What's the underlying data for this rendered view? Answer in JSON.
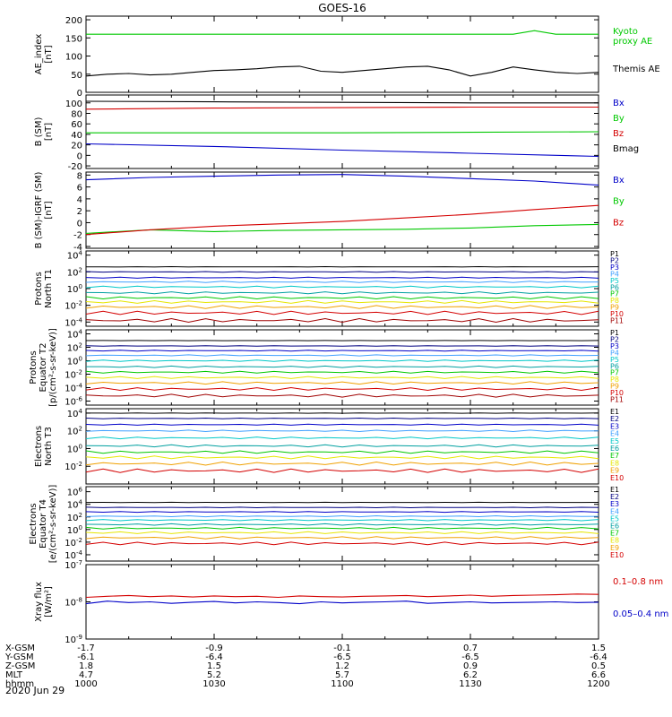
{
  "title": "GOES-16",
  "date": "2020 Jun 29",
  "colors": {
    "black": "#000000",
    "red": "#d40000",
    "green": "#00c800",
    "blue": "#0000c8",
    "cyan": "#00c8c8",
    "yellow": "#e6e600",
    "orange": "#f0a000",
    "navy": "#000080",
    "purple": "#800080",
    "lightblue": "#40a0ff",
    "teal": "#00a0a0",
    "darkred": "#a00000"
  },
  "chart_data": [
    {
      "type": "line",
      "ylabel": "AE_index\n[nT]",
      "yticks": [
        "0",
        "50",
        "100",
        "150",
        "200"
      ],
      "ylim": [
        0,
        210
      ],
      "x": [
        "1000",
        "1005",
        "1010",
        "1015",
        "1020",
        "1025",
        "1030",
        "1035",
        "1040",
        "1045",
        "1050",
        "1055",
        "1100",
        "1105",
        "1110",
        "1115",
        "1120",
        "1125",
        "1130",
        "1135",
        "1140",
        "1145",
        "1150",
        "1155",
        "1200"
      ],
      "series": [
        {
          "name": "Kyoto\nproxy AE",
          "color": "green",
          "values": [
            160,
            160,
            160,
            160,
            160,
            160,
            160,
            160,
            160,
            160,
            160,
            160,
            160,
            160,
            160,
            160,
            160,
            160,
            160,
            160,
            160,
            170,
            160,
            160,
            160
          ]
        },
        {
          "name": "Themis AE",
          "color": "black",
          "values": [
            45,
            50,
            52,
            48,
            50,
            55,
            60,
            62,
            65,
            70,
            72,
            58,
            55,
            60,
            65,
            70,
            72,
            62,
            45,
            55,
            70,
            62,
            55,
            52,
            55
          ]
        }
      ]
    },
    {
      "type": "line",
      "ylabel": "B (SM)\n[nT]",
      "yticks": [
        "-20",
        "0",
        "20",
        "40",
        "60",
        "80",
        "100"
      ],
      "ylim": [
        -25,
        115
      ],
      "x": [
        "1000",
        "1030",
        "1100",
        "1130",
        "1200"
      ],
      "series": [
        {
          "name": "Bx",
          "color": "blue",
          "values": [
            22,
            17,
            10,
            4,
            -2
          ]
        },
        {
          "name": "By",
          "color": "green",
          "values": [
            43,
            43,
            43,
            44,
            45
          ]
        },
        {
          "name": "Bz",
          "color": "red",
          "values": [
            88,
            90,
            91,
            92,
            92
          ]
        },
        {
          "name": "Bmag",
          "color": "black",
          "values": [
            103,
            102,
            101,
            100,
            100
          ]
        }
      ]
    },
    {
      "type": "line",
      "ylabel": "B (SM)-IGRF (SM)\n[nT]",
      "yticks": [
        "-4",
        "-2",
        "0",
        "2",
        "4",
        "6",
        "8"
      ],
      "ylim": [
        -4.3,
        8.5
      ],
      "x": [
        "1000",
        "1015",
        "1030",
        "1045",
        "1100",
        "1115",
        "1130",
        "1145",
        "1200"
      ],
      "series": [
        {
          "name": "Bx",
          "color": "blue",
          "values": [
            7.2,
            7.6,
            7.8,
            8.0,
            8.1,
            7.8,
            7.4,
            7.0,
            6.3
          ]
        },
        {
          "name": "By",
          "color": "green",
          "values": [
            -1.8,
            -1.2,
            -1.5,
            -1.3,
            -1.2,
            -1.1,
            -0.9,
            -0.5,
            -0.3
          ]
        },
        {
          "name": "Bz",
          "color": "red",
          "values": [
            -2.0,
            -1.2,
            -0.6,
            -0.2,
            0.2,
            0.8,
            1.4,
            2.2,
            2.9
          ]
        }
      ]
    },
    {
      "type": "line",
      "ylabel": "Protons\nNorth T1",
      "yscale": "log",
      "yticks": [
        "10^-4",
        "10^-2",
        "10^0",
        "10^2",
        "10^4"
      ],
      "ylim": [
        -4.5,
        4.5
      ],
      "channels": [
        "P1",
        "P2",
        "P3",
        "P4",
        "P5",
        "P6",
        "P7",
        "P8",
        "P9",
        "P10",
        "P11"
      ],
      "log_values": [
        2.6,
        2.0,
        1.3,
        0.8,
        0.2,
        -0.5,
        -1.1,
        -1.6,
        -2.2,
        -2.9,
        -3.8
      ]
    },
    {
      "type": "line",
      "ylabel": "Protons\nEquator T2\n[p/(cm²-s-sr-keV)]",
      "yscale": "log",
      "yticks": [
        "10^-6",
        "10^-4",
        "10^-2",
        "10^0",
        "10^2",
        "10^4"
      ],
      "ylim": [
        -6.6,
        4.6
      ],
      "channels": [
        "P1",
        "P2",
        "P3",
        "P4",
        "P5",
        "P6",
        "P7",
        "P8",
        "P9",
        "P10",
        "P11"
      ],
      "log_values": [
        3.0,
        2.2,
        1.5,
        0.8,
        0.0,
        -0.9,
        -1.7,
        -2.5,
        -3.3,
        -4.2,
        -5.2
      ]
    },
    {
      "type": "line",
      "ylabel": "Electrons\nNorth T3",
      "yscale": "log",
      "yticks": [
        "10^-2",
        "10^0",
        "10^2",
        "10^4"
      ],
      "ylim": [
        -4.0,
        4.5
      ],
      "channels": [
        "E1",
        "E2",
        "E3",
        "E4",
        "E5",
        "E6",
        "E7",
        "E8",
        "E9",
        "E10"
      ],
      "log_values": [
        4.0,
        3.4,
        2.7,
        2.0,
        1.2,
        0.3,
        -0.4,
        -1.0,
        -1.7,
        -2.5
      ]
    },
    {
      "type": "line",
      "ylabel": "Electrons\nEquator T4\n[e/(cm²-s-sr-keV)]",
      "yscale": "log",
      "yticks": [
        "10^-4",
        "10^-2",
        "10^0",
        "10^2",
        "10^4",
        "10^6"
      ],
      "ylim": [
        -5.0,
        6.8
      ],
      "channels": [
        "E1",
        "E2",
        "E3",
        "E4",
        "E5",
        "E6",
        "E7",
        "E8",
        "E9",
        "E10"
      ],
      "log_values": [
        4.3,
        3.5,
        2.8,
        2.1,
        1.5,
        0.8,
        0.2,
        -0.5,
        -1.3,
        -2.2
      ]
    },
    {
      "type": "line",
      "ylabel": "Xray flux\n[W/m²]",
      "yscale": "log",
      "yticks": [
        "10^-9",
        "10^-8",
        "10^-7"
      ],
      "ylim": [
        -9,
        -7
      ],
      "x": [
        "1000",
        "1005",
        "1010",
        "1015",
        "1020",
        "1025",
        "1030",
        "1035",
        "1040",
        "1045",
        "1050",
        "1055",
        "1100",
        "1105",
        "1110",
        "1115",
        "1120",
        "1125",
        "1130",
        "1135",
        "1140",
        "1145",
        "1150",
        "1155",
        "1200"
      ],
      "series": [
        {
          "name": "0.1–0.8 nm",
          "color": "red",
          "log_values": [
            -7.88,
            -7.85,
            -7.83,
            -7.86,
            -7.84,
            -7.87,
            -7.84,
            -7.86,
            -7.85,
            -7.88,
            -7.84,
            -7.86,
            -7.87,
            -7.85,
            -7.84,
            -7.83,
            -7.86,
            -7.84,
            -7.82,
            -7.85,
            -7.83,
            -7.82,
            -7.81,
            -7.79,
            -7.8
          ]
        },
        {
          "name": "0.05–0.4 nm",
          "color": "blue",
          "log_values": [
            -8.05,
            -7.98,
            -8.02,
            -8.0,
            -8.04,
            -8.01,
            -7.99,
            -8.03,
            -8.0,
            -8.02,
            -8.05,
            -8.0,
            -8.03,
            -8.01,
            -8.0,
            -7.98,
            -8.04,
            -8.02,
            -8.0,
            -8.03,
            -8.02,
            -8.01,
            -8.0,
            -8.02,
            -8.01
          ]
        }
      ]
    }
  ],
  "footer": {
    "row_labels": [
      "X-GSM",
      "Y-GSM",
      "Z-GSM",
      "MLT",
      "hhmm"
    ],
    "columns": [
      {
        "X-GSM": "-1.7",
        "Y-GSM": "-6.1",
        "Z-GSM": "1.8",
        "MLT": "4.7",
        "hhmm": "1000"
      },
      {
        "X-GSM": "-0.9",
        "Y-GSM": "-6.4",
        "Z-GSM": "1.5",
        "MLT": "5.2",
        "hhmm": "1030"
      },
      {
        "X-GSM": "-0.1",
        "Y-GSM": "-6.5",
        "Z-GSM": "1.2",
        "MLT": "5.7",
        "hhmm": "1100"
      },
      {
        "X-GSM": "0.7",
        "Y-GSM": "-6.5",
        "Z-GSM": "0.9",
        "MLT": "6.2",
        "hhmm": "1130"
      },
      {
        "X-GSM": "1.5",
        "Y-GSM": "-6.4",
        "Z-GSM": "0.5",
        "MLT": "6.6",
        "hhmm": "1200"
      }
    ]
  }
}
